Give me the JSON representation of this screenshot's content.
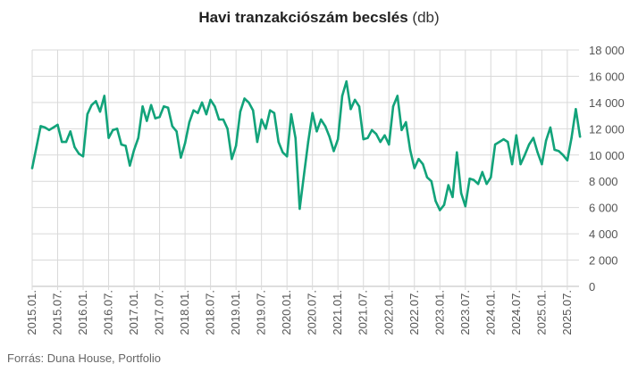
{
  "chart_data": {
    "type": "line",
    "title": "Havi tranzakciószám becslés",
    "title_unit": "(db)",
    "source": "Forrás: Duna House, Portfolio",
    "ylim": [
      0,
      18000
    ],
    "yticks": [
      0,
      2000,
      4000,
      6000,
      8000,
      10000,
      12000,
      14000,
      16000,
      18000
    ],
    "ytick_labels": [
      "0",
      "2 000",
      "4 000",
      "6 000",
      "8 000",
      "10 000",
      "12 000",
      "14 000",
      "16 000",
      "18 000"
    ],
    "xtick_labels": [
      "2015.01.",
      "2015.07.",
      "2016.01.",
      "2016.07.",
      "2017.01.",
      "2017.07.",
      "2018.01.",
      "2018.07.",
      "2019.01.",
      "2019.07.",
      "2020.01.",
      "2020.07.",
      "2021.01.",
      "2021.07.",
      "2022.01.",
      "2022.07.",
      "2023.01.",
      "2023.07.",
      "2024.01.",
      "2024.07.",
      "2025.01.",
      "2025.07."
    ],
    "grid": true,
    "colors": {
      "line": "#12a37a",
      "grid": "#d9d9d9",
      "text": "#555555"
    },
    "series": [
      {
        "name": "",
        "start": "2015.01.",
        "values": [
          9000,
          10600,
          12200,
          12100,
          11900,
          12100,
          12300,
          11000,
          11000,
          11800,
          10600,
          10100,
          9900,
          13100,
          13800,
          14100,
          13300,
          14500,
          11300,
          11900,
          12000,
          10800,
          10700,
          9200,
          10400,
          11300,
          13700,
          12600,
          13800,
          12800,
          12900,
          13700,
          13600,
          12200,
          11800,
          9800,
          10900,
          12500,
          13400,
          13200,
          14000,
          13100,
          14200,
          13700,
          12700,
          12700,
          12000,
          9700,
          10700,
          13300,
          14300,
          14000,
          13400,
          11000,
          12700,
          12000,
          13400,
          13200,
          11000,
          10200,
          9900,
          13100,
          11300,
          5900,
          8500,
          11000,
          13200,
          11800,
          12700,
          12200,
          11400,
          10300,
          11200,
          14500,
          15600,
          13500,
          14200,
          13700,
          11200,
          11300,
          11900,
          11600,
          11000,
          11500,
          10800,
          13700,
          14500,
          11900,
          12500,
          10400,
          9000,
          9700,
          9300,
          8300,
          8000,
          6500,
          5800,
          6200,
          7700,
          6800,
          10200,
          7100,
          6100,
          8200,
          8100,
          7800,
          8700,
          7800,
          8300,
          10800,
          11000,
          11200,
          11000,
          9300,
          11500,
          9300,
          10000,
          10800,
          11300,
          10200,
          9300,
          11100,
          12100,
          10400,
          10300,
          10000,
          9600,
          11300,
          13500,
          11400
        ]
      }
    ]
  }
}
